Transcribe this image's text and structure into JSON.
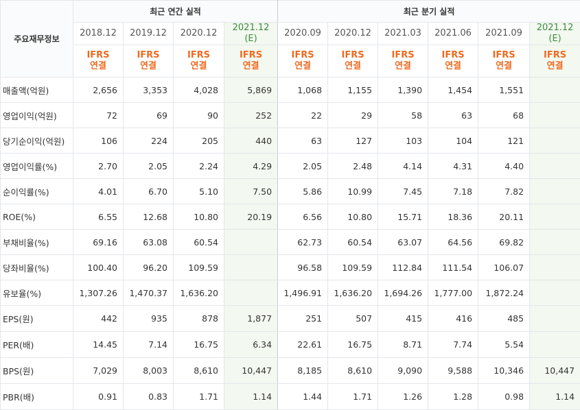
{
  "header": {
    "label_column": "주요재무정보",
    "annual_group": "최근 연간 실적",
    "quarter_group": "최근 분기 실적",
    "basis_line1": "IFRS",
    "basis_line2": "연결"
  },
  "columns": [
    {
      "period": "2018.12",
      "estimate": false
    },
    {
      "period": "2019.12",
      "estimate": false
    },
    {
      "period": "2020.12",
      "estimate": false
    },
    {
      "period": "2021.12",
      "sub": "(E)",
      "estimate": true
    },
    {
      "period": "2020.09",
      "estimate": false
    },
    {
      "period": "2020.12",
      "estimate": false
    },
    {
      "period": "2021.03",
      "estimate": false
    },
    {
      "period": "2021.06",
      "estimate": false
    },
    {
      "period": "2021.09",
      "estimate": false
    },
    {
      "period": "2021.12",
      "sub": "(E)",
      "estimate": true
    }
  ],
  "rows": [
    {
      "label": "매출액(억원)",
      "values": [
        "2,656",
        "3,353",
        "4,028",
        "5,869",
        "1,068",
        "1,155",
        "1,390",
        "1,454",
        "1,551",
        ""
      ]
    },
    {
      "label": "영업이익(억원)",
      "values": [
        "72",
        "69",
        "90",
        "252",
        "22",
        "29",
        "58",
        "63",
        "68",
        ""
      ]
    },
    {
      "label": "당기순이익(억원)",
      "values": [
        "106",
        "224",
        "205",
        "440",
        "63",
        "127",
        "103",
        "104",
        "121",
        ""
      ]
    },
    {
      "label": "영업이익률(%)",
      "values": [
        "2.70",
        "2.05",
        "2.24",
        "4.29",
        "2.05",
        "2.48",
        "4.14",
        "4.31",
        "4.40",
        ""
      ]
    },
    {
      "label": "순이익률(%)",
      "values": [
        "4.01",
        "6.70",
        "5.10",
        "7.50",
        "5.86",
        "10.99",
        "7.45",
        "7.18",
        "7.82",
        ""
      ]
    },
    {
      "label": "ROE(%)",
      "values": [
        "6.55",
        "12.68",
        "10.80",
        "20.19",
        "6.56",
        "10.80",
        "15.71",
        "18.36",
        "20.11",
        ""
      ]
    },
    {
      "label": "부채비율(%)",
      "values": [
        "69.16",
        "63.08",
        "60.54",
        "",
        "62.73",
        "60.54",
        "63.07",
        "64.56",
        "69.82",
        ""
      ]
    },
    {
      "label": "당좌비율(%)",
      "values": [
        "100.40",
        "96.20",
        "109.59",
        "",
        "96.58",
        "109.59",
        "112.84",
        "111.54",
        "106.07",
        ""
      ]
    },
    {
      "label": "유보율(%)",
      "values": [
        "1,307.26",
        "1,470.37",
        "1,636.20",
        "",
        "1,496.91",
        "1,636.20",
        "1,694.26",
        "1,777.00",
        "1,872.24",
        ""
      ]
    },
    {
      "label": "EPS(원)",
      "values": [
        "442",
        "935",
        "878",
        "1,877",
        "251",
        "507",
        "415",
        "416",
        "485",
        ""
      ]
    },
    {
      "label": "PER(배)",
      "values": [
        "14.45",
        "7.14",
        "16.75",
        "6.34",
        "22.61",
        "16.75",
        "8.71",
        "7.74",
        "5.54",
        ""
      ]
    },
    {
      "label": "BPS(원)",
      "values": [
        "7,029",
        "8,003",
        "8,610",
        "10,447",
        "8,185",
        "8,610",
        "9,090",
        "9,588",
        "10,346",
        "10,447"
      ]
    },
    {
      "label": "PBR(배)",
      "values": [
        "0.91",
        "0.83",
        "1.71",
        "1.14",
        "1.44",
        "1.71",
        "1.26",
        "1.28",
        "0.98",
        "1.14"
      ]
    }
  ],
  "colors": {
    "ifrs_orange": "#ef6a1f",
    "estimate_green": "#3b8c3b",
    "estimate_bg": "#f3f8f0",
    "border": "#e3e6ea"
  }
}
